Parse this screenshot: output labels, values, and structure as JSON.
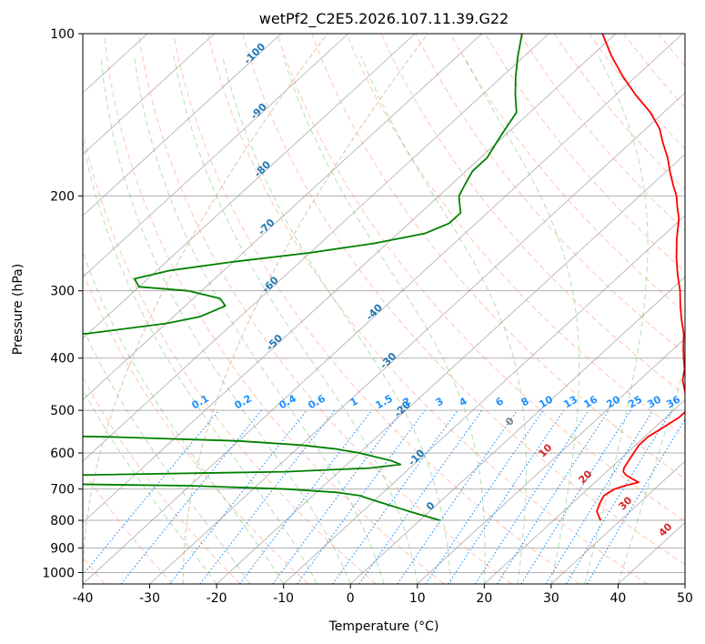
{
  "chart_data": {
    "type": "line",
    "title": "wetPf2_C2E5.2026.107.11.39.G22",
    "xlabel": "Temperature (°C)",
    "ylabel": "Pressure (hPa)",
    "xlim": [
      -40,
      50
    ],
    "ylim": [
      1050,
      100
    ],
    "y_scale": "log",
    "x_ticks": [
      -40,
      -30,
      -20,
      -10,
      0,
      10,
      20,
      30,
      40,
      50
    ],
    "y_ticks": [
      100,
      200,
      300,
      400,
      500,
      600,
      700,
      800,
      900,
      1000
    ],
    "grid": true,
    "colors": {
      "temperature": "#ff0000",
      "dewpoint": "#008000",
      "isotherm": "#808080",
      "dry_adiabat": "#ff7f50",
      "moist_adiabat": "#2ca02c",
      "mixing_ratio": "#1e90ff",
      "isotherm_label": "#1f77b4",
      "dry_adiabat_label": "#d62728",
      "lcl_curve": "#d2b48c"
    },
    "isotherm_labels": [
      {
        "t": -100,
        "text": "-100"
      },
      {
        "t": -90,
        "text": "-90"
      },
      {
        "t": -80,
        "text": "-80"
      },
      {
        "t": -70,
        "text": "-70"
      },
      {
        "t": -60,
        "text": "-60"
      },
      {
        "t": -50,
        "text": "-50"
      },
      {
        "t": -40,
        "text": "-40"
      },
      {
        "t": -30,
        "text": "-30"
      },
      {
        "t": -20,
        "text": "-20"
      },
      {
        "t": -10,
        "text": "-10"
      },
      {
        "t": 0,
        "text": "0"
      }
    ],
    "dry_adiabat_labels": [
      {
        "theta": 10,
        "text": "10"
      },
      {
        "theta": 20,
        "text": "20"
      },
      {
        "theta": 30,
        "text": "30"
      },
      {
        "theta": 40,
        "text": "40"
      }
    ],
    "mixing_ratio_labels": [
      "0.1",
      "0.2",
      "0.4",
      "0.6",
      "1",
      "1.5",
      "2",
      "3",
      "4",
      "6",
      "8",
      "10",
      "13",
      "16",
      "20",
      "25",
      "30",
      "36"
    ],
    "series": [
      {
        "key": "temperature",
        "p": [
          800,
          770,
          740,
          720,
          700,
          690,
          680,
          670,
          660,
          650,
          640,
          620,
          600,
          580,
          560,
          545,
          530,
          515,
          500,
          480,
          460,
          440,
          420,
          400,
          380,
          360,
          340,
          320,
          300,
          280,
          260,
          240,
          220,
          210,
          200,
          190,
          180,
          170,
          160,
          150,
          140,
          130,
          120,
          110,
          100
        ],
        "t": [
          27,
          25,
          24,
          23.5,
          24,
          25,
          26.5,
          25,
          23.5,
          22.5,
          22,
          21.5,
          21,
          20.5,
          20.5,
          21,
          21.5,
          22,
          22,
          20.5,
          18.5,
          16.5,
          15,
          13,
          11,
          9,
          6.5,
          4,
          1.5,
          -1.5,
          -4.5,
          -7.5,
          -10.5,
          -12.5,
          -14.5,
          -17,
          -19.5,
          -22,
          -25,
          -28,
          -32,
          -37,
          -42,
          -47,
          -52
        ]
      },
      {
        "key": "dewpoint",
        "p": [
          800,
          790,
          780,
          770,
          760,
          750,
          740,
          730,
          720,
          710,
          700,
          690,
          685,
          680,
          675,
          672,
          668,
          660,
          650,
          640,
          630,
          620,
          610,
          600,
          590,
          580,
          570,
          560,
          550,
          540,
          530,
          520,
          515,
          510,
          505,
          500,
          495,
          460,
          420,
          380,
          360,
          345,
          335,
          320,
          310,
          300,
          295,
          285,
          275,
          265,
          255,
          245,
          235,
          225,
          215,
          205,
          200,
          190,
          180,
          170,
          160,
          150,
          140,
          130,
          120,
          110,
          100
        ],
        "t": [
          3,
          1,
          -1,
          -3,
          -5,
          -7,
          -9,
          -11,
          -13,
          -17,
          -25,
          -40,
          -60,
          -110,
          -150,
          -190,
          -130,
          -60,
          -28,
          -16,
          -12,
          -14,
          -17,
          -20,
          -24,
          -30,
          -40,
          -60,
          -100,
          -160,
          -200,
          -170,
          -160,
          -150,
          -135,
          -130,
          -150,
          -200,
          -150,
          -100,
          -80,
          -70,
          -66,
          -64,
          -66,
          -72,
          -80,
          -82,
          -78,
          -70,
          -60,
          -52,
          -46,
          -44,
          -44,
          -46,
          -47,
          -48,
          -49,
          -49,
          -50,
          -51,
          -52,
          -55,
          -58,
          -61,
          -64
        ]
      }
    ]
  }
}
